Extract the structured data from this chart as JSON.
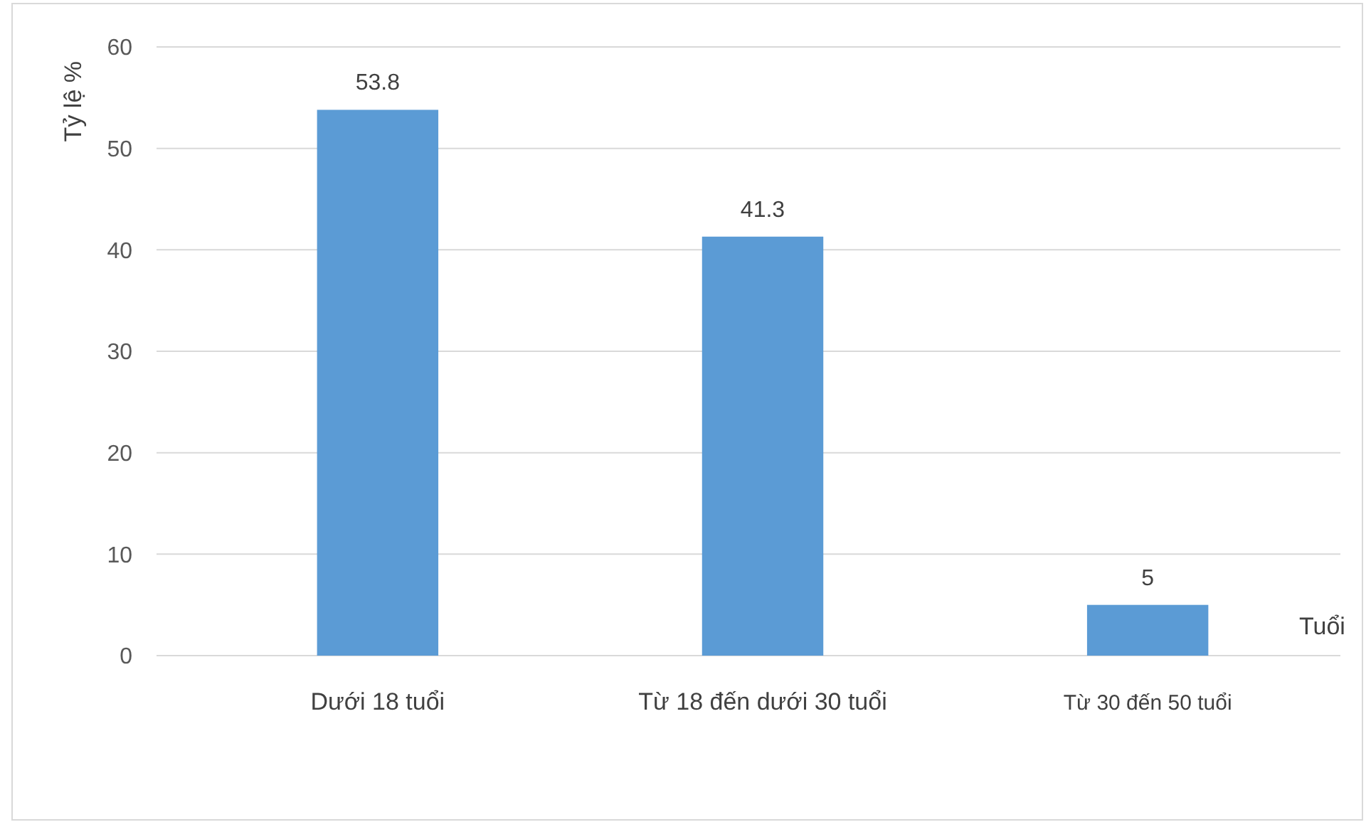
{
  "chart_data": {
    "type": "bar",
    "ylabel": "Tỷ lệ %",
    "xlabel": "Tuổi",
    "categories": [
      "Dưới 18 tuổi",
      "Từ 18 đến dưới 30 tuổi",
      "Từ 30 đến 50 tuổi"
    ],
    "values": [
      53.8,
      41.3,
      5
    ],
    "color": "#5b9bd5",
    "ylim": [
      0,
      60
    ],
    "yticks": [
      0,
      10,
      20,
      30,
      40,
      50,
      60
    ],
    "grid": "y",
    "data_labels": true
  }
}
